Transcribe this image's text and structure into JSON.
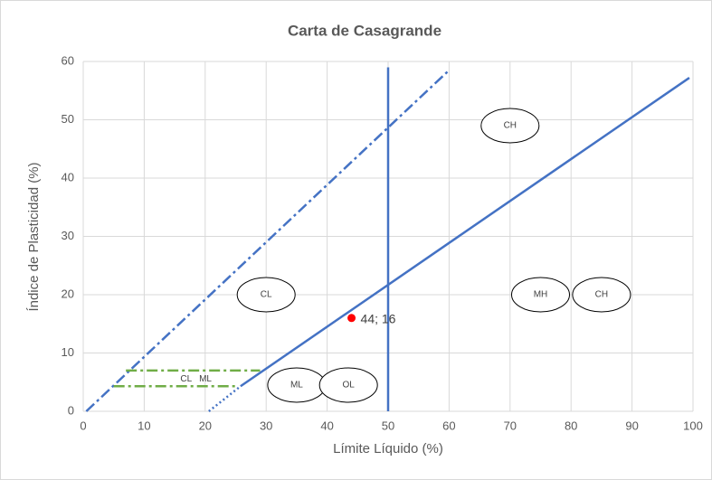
{
  "chart_data": {
    "type": "scatter",
    "title": "Carta de Casagrande",
    "xlabel": "Límite Líquido (%)",
    "ylabel": "Índice de Plasticidad  (%)",
    "xlim": [
      0,
      100
    ],
    "ylim": [
      0,
      60
    ],
    "xticks": [
      0,
      10,
      20,
      30,
      40,
      50,
      60,
      70,
      80,
      90,
      100
    ],
    "yticks": [
      0,
      10,
      20,
      30,
      40,
      50,
      60
    ],
    "grid": true,
    "series": [
      {
        "color": "#4472c4",
        "dash": "dashdot",
        "x": [
          0.5,
          60
        ],
        "values": [
          0,
          58.5
        ]
      },
      {
        "color": "#4472c4",
        "dash": "solid",
        "x": [
          50,
          50
        ],
        "values": [
          0,
          59
        ]
      },
      {
        "color": "#4472c4",
        "dash": "dotted",
        "x": [
          20.6,
          25.8
        ],
        "values": [
          0,
          4.3
        ]
      },
      {
        "color": "#4472c4",
        "dash": "solid",
        "x": [
          25.8,
          99.4
        ],
        "values": [
          4.3,
          57.2
        ]
      },
      {
        "color": "#70ad47",
        "dash": "dashdot",
        "x": [
          7,
          29
        ],
        "values": [
          7,
          7
        ]
      },
      {
        "color": "#70ad47",
        "dash": "dashdot",
        "x": [
          5,
          25
        ],
        "values": [
          4.3,
          4.3
        ]
      },
      {
        "color": "#ff0000",
        "mode": "markers",
        "x": [
          44
        ],
        "values": [
          16
        ],
        "value_labels": [
          "44; 16"
        ]
      }
    ],
    "annotations": [
      {
        "text": "CH",
        "x": 70,
        "y": 49,
        "shape": "ellipse"
      },
      {
        "text": "CL",
        "x": 30,
        "y": 20,
        "shape": "ellipse"
      },
      {
        "text": "MH",
        "x": 75,
        "y": 20,
        "shape": "ellipse"
      },
      {
        "text": "CH",
        "x": 85,
        "y": 20,
        "shape": "ellipse"
      },
      {
        "text": "ML",
        "x": 35,
        "y": 4.5,
        "shape": "ellipse"
      },
      {
        "text": "OL",
        "x": 43.5,
        "y": 4.5,
        "shape": "ellipse"
      },
      {
        "text": "CL   ML",
        "x": 18.5,
        "y": 5.5,
        "shape": "none"
      }
    ]
  }
}
